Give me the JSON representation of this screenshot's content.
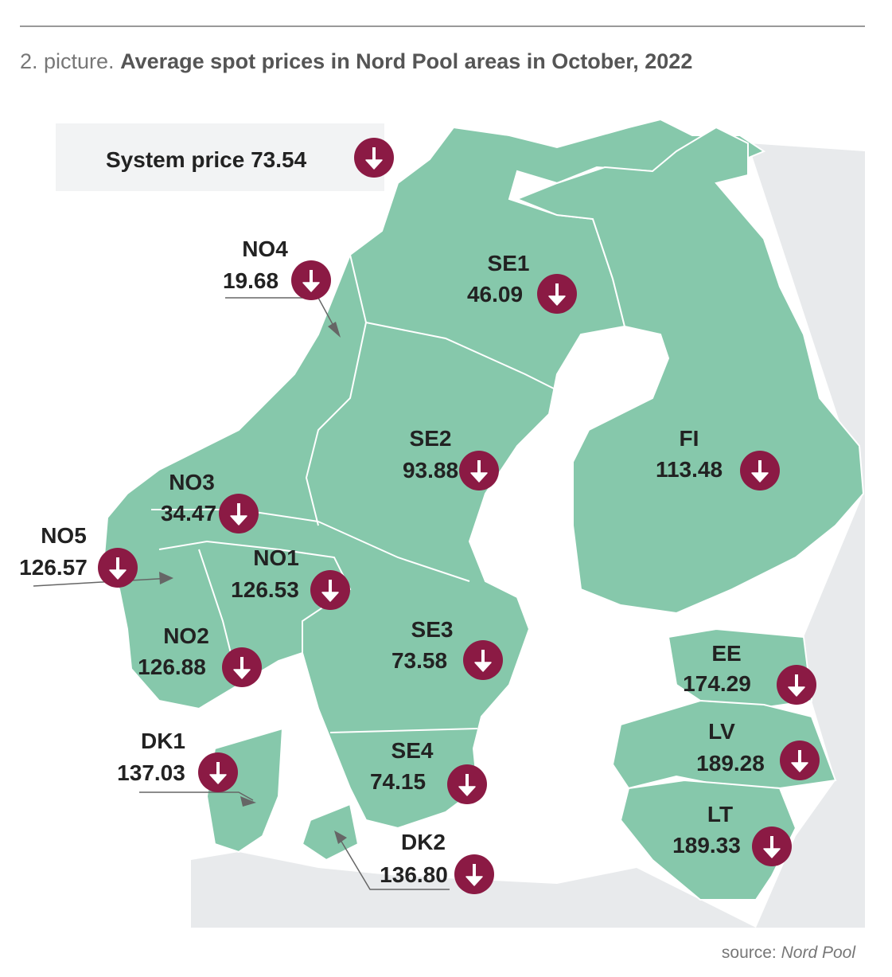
{
  "header": {
    "prefix": "2. picture.",
    "title": "Average spot prices in Nord Pool areas in October, 2022"
  },
  "system_price": {
    "label": "System price",
    "value": "73.54"
  },
  "areas": [
    {
      "name": "NO4",
      "price": "19.68"
    },
    {
      "name": "SE1",
      "price": "46.09"
    },
    {
      "name": "SE2",
      "price": "93.88"
    },
    {
      "name": "FI",
      "price": "113.48"
    },
    {
      "name": "NO3",
      "price": "34.47"
    },
    {
      "name": "NO5",
      "price": "126.57"
    },
    {
      "name": "NO1",
      "price": "126.53"
    },
    {
      "name": "NO2",
      "price": "126.88"
    },
    {
      "name": "SE3",
      "price": "73.58"
    },
    {
      "name": "EE",
      "price": "174.29"
    },
    {
      "name": "LV",
      "price": "189.28"
    },
    {
      "name": "LT",
      "price": "189.33"
    },
    {
      "name": "DK1",
      "price": "137.03"
    },
    {
      "name": "SE4",
      "price": "74.15"
    },
    {
      "name": "DK2",
      "price": "136.80"
    }
  ],
  "source": {
    "label": "source:",
    "name": "Nord Pool"
  }
}
